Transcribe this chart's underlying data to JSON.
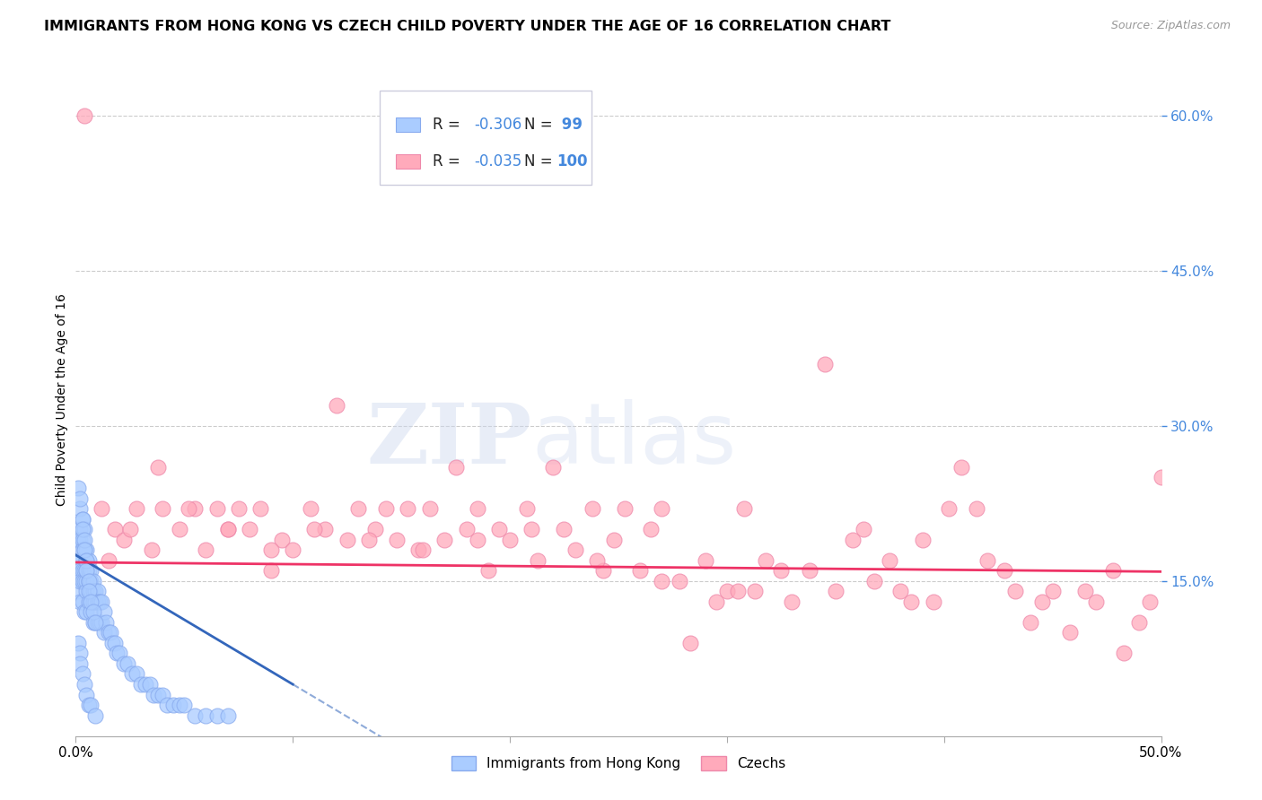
{
  "title": "IMMIGRANTS FROM HONG KONG VS CZECH CHILD POVERTY UNDER THE AGE OF 16 CORRELATION CHART",
  "source": "Source: ZipAtlas.com",
  "ylabel": "Child Poverty Under the Age of 16",
  "xlim": [
    0.0,
    0.5
  ],
  "ylim": [
    0.0,
    0.65
  ],
  "xtick_positions": [
    0.0,
    0.1,
    0.2,
    0.3,
    0.4,
    0.5
  ],
  "xtick_labels": [
    "0.0%",
    "",
    "",
    "",
    "",
    "50.0%"
  ],
  "ytick_positions_right": [
    0.15,
    0.3,
    0.45,
    0.6
  ],
  "ytick_labels_right": [
    "15.0%",
    "30.0%",
    "45.0%",
    "60.0%"
  ],
  "grid_color": "#cccccc",
  "background_color": "#ffffff",
  "series1_color": "#aaccff",
  "series1_edge": "#88aaee",
  "series2_color": "#ffaabb",
  "series2_edge": "#ee88aa",
  "line1_color": "#3366bb",
  "line2_color": "#ee3366",
  "R1": -0.306,
  "N1": 99,
  "R2": -0.035,
  "N2": 100,
  "legend_label1": "Immigrants from Hong Kong",
  "legend_label2": "Czechs",
  "watermark_zip": "ZIP",
  "watermark_atlas": "atlas",
  "title_fontsize": 11.5,
  "label_fontsize": 10,
  "tick_fontsize": 11,
  "right_tick_color": "#4488dd",
  "legend_text_color": "#3366bb",
  "legend_R_color": "#3366bb",
  "legend_N_color": "#3366bb",
  "line1_slope": -1.25,
  "line1_intercept": 0.175,
  "line1_solid_end": 0.1,
  "line1_dash_end": 0.28,
  "line2_slope": -0.018,
  "line2_intercept": 0.168,
  "series1_x": [
    0.001,
    0.001,
    0.001,
    0.001,
    0.002,
    0.002,
    0.002,
    0.002,
    0.002,
    0.002,
    0.002,
    0.003,
    0.003,
    0.003,
    0.003,
    0.003,
    0.003,
    0.004,
    0.004,
    0.004,
    0.004,
    0.004,
    0.005,
    0.005,
    0.005,
    0.005,
    0.005,
    0.005,
    0.006,
    0.006,
    0.006,
    0.006,
    0.007,
    0.007,
    0.007,
    0.007,
    0.008,
    0.008,
    0.008,
    0.008,
    0.009,
    0.009,
    0.009,
    0.01,
    0.01,
    0.01,
    0.011,
    0.011,
    0.012,
    0.012,
    0.013,
    0.013,
    0.014,
    0.015,
    0.016,
    0.017,
    0.018,
    0.019,
    0.02,
    0.022,
    0.024,
    0.026,
    0.028,
    0.03,
    0.032,
    0.034,
    0.036,
    0.038,
    0.04,
    0.042,
    0.045,
    0.048,
    0.05,
    0.055,
    0.06,
    0.065,
    0.07,
    0.001,
    0.002,
    0.003,
    0.003,
    0.004,
    0.004,
    0.005,
    0.005,
    0.006,
    0.006,
    0.007,
    0.008,
    0.009,
    0.001,
    0.002,
    0.002,
    0.003,
    0.004,
    0.005,
    0.006,
    0.007,
    0.009
  ],
  "series1_y": [
    0.19,
    0.17,
    0.16,
    0.14,
    0.22,
    0.2,
    0.19,
    0.17,
    0.16,
    0.15,
    0.13,
    0.21,
    0.19,
    0.18,
    0.16,
    0.15,
    0.13,
    0.2,
    0.18,
    0.16,
    0.15,
    0.12,
    0.18,
    0.17,
    0.16,
    0.15,
    0.14,
    0.12,
    0.17,
    0.16,
    0.15,
    0.13,
    0.16,
    0.15,
    0.14,
    0.12,
    0.15,
    0.14,
    0.13,
    0.11,
    0.14,
    0.13,
    0.11,
    0.14,
    0.13,
    0.11,
    0.13,
    0.11,
    0.13,
    0.11,
    0.12,
    0.1,
    0.11,
    0.1,
    0.1,
    0.09,
    0.09,
    0.08,
    0.08,
    0.07,
    0.07,
    0.06,
    0.06,
    0.05,
    0.05,
    0.05,
    0.04,
    0.04,
    0.04,
    0.03,
    0.03,
    0.03,
    0.03,
    0.02,
    0.02,
    0.02,
    0.02,
    0.24,
    0.23,
    0.21,
    0.2,
    0.19,
    0.18,
    0.17,
    0.16,
    0.15,
    0.14,
    0.13,
    0.12,
    0.11,
    0.09,
    0.08,
    0.07,
    0.06,
    0.05,
    0.04,
    0.03,
    0.03,
    0.02
  ],
  "series2_x": [
    0.004,
    0.015,
    0.018,
    0.022,
    0.028,
    0.035,
    0.04,
    0.048,
    0.055,
    0.06,
    0.065,
    0.07,
    0.075,
    0.08,
    0.085,
    0.09,
    0.095,
    0.1,
    0.108,
    0.115,
    0.12,
    0.125,
    0.13,
    0.138,
    0.143,
    0.148,
    0.153,
    0.158,
    0.163,
    0.17,
    0.175,
    0.18,
    0.185,
    0.19,
    0.195,
    0.2,
    0.208,
    0.213,
    0.22,
    0.225,
    0.23,
    0.238,
    0.243,
    0.248,
    0.253,
    0.26,
    0.265,
    0.27,
    0.278,
    0.283,
    0.29,
    0.295,
    0.3,
    0.308,
    0.313,
    0.318,
    0.325,
    0.33,
    0.338,
    0.345,
    0.35,
    0.358,
    0.363,
    0.368,
    0.375,
    0.38,
    0.385,
    0.39,
    0.395,
    0.402,
    0.408,
    0.415,
    0.42,
    0.428,
    0.433,
    0.44,
    0.445,
    0.45,
    0.458,
    0.465,
    0.47,
    0.478,
    0.483,
    0.49,
    0.495,
    0.5,
    0.012,
    0.025,
    0.038,
    0.052,
    0.07,
    0.09,
    0.11,
    0.135,
    0.16,
    0.185,
    0.21,
    0.24,
    0.27,
    0.305
  ],
  "series2_y": [
    0.6,
    0.17,
    0.2,
    0.19,
    0.22,
    0.18,
    0.22,
    0.2,
    0.22,
    0.18,
    0.22,
    0.2,
    0.22,
    0.2,
    0.22,
    0.16,
    0.19,
    0.18,
    0.22,
    0.2,
    0.32,
    0.19,
    0.22,
    0.2,
    0.22,
    0.19,
    0.22,
    0.18,
    0.22,
    0.19,
    0.26,
    0.2,
    0.22,
    0.16,
    0.2,
    0.19,
    0.22,
    0.17,
    0.26,
    0.2,
    0.18,
    0.22,
    0.16,
    0.19,
    0.22,
    0.16,
    0.2,
    0.22,
    0.15,
    0.09,
    0.17,
    0.13,
    0.14,
    0.22,
    0.14,
    0.17,
    0.16,
    0.13,
    0.16,
    0.36,
    0.14,
    0.19,
    0.2,
    0.15,
    0.17,
    0.14,
    0.13,
    0.19,
    0.13,
    0.22,
    0.26,
    0.22,
    0.17,
    0.16,
    0.14,
    0.11,
    0.13,
    0.14,
    0.1,
    0.14,
    0.13,
    0.16,
    0.08,
    0.11,
    0.13,
    0.25,
    0.22,
    0.2,
    0.26,
    0.22,
    0.2,
    0.18,
    0.2,
    0.19,
    0.18,
    0.19,
    0.2,
    0.17,
    0.15,
    0.14
  ]
}
